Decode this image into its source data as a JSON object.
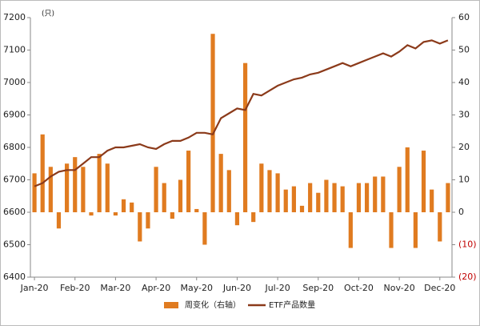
{
  "chart_data": {
    "type": "combo",
    "unit_label": "(只)",
    "categories": [
      "Jan-20",
      null,
      null,
      null,
      null,
      "Feb-20",
      null,
      null,
      null,
      null,
      "Mar-20",
      null,
      null,
      null,
      null,
      "Apr-20",
      null,
      null,
      null,
      null,
      "May-20",
      null,
      null,
      null,
      null,
      "Jun-20",
      null,
      null,
      null,
      null,
      "Jul-20",
      null,
      null,
      null,
      null,
      "Sep-20",
      null,
      null,
      null,
      null,
      "Oct-20",
      null,
      null,
      null,
      null,
      "Nov-20",
      null,
      null,
      null,
      null,
      "Dec-20",
      null
    ],
    "series": [
      {
        "name": "周变化（右轴）",
        "type": "bar",
        "axis": "y2",
        "color": "#e07b20",
        "values": [
          12,
          24,
          14,
          -5,
          15,
          17,
          14,
          -1,
          18,
          15,
          -1,
          4,
          3,
          -9,
          -5,
          14,
          9,
          -2,
          10,
          19,
          1,
          -10,
          55,
          18,
          13,
          -4,
          46,
          -3,
          15,
          13,
          12,
          7,
          8,
          2,
          9,
          6,
          10,
          9,
          8,
          -11,
          9,
          9,
          11,
          11,
          -11,
          14,
          20,
          -11,
          19,
          7,
          -9,
          9
        ]
      },
      {
        "name": "ETF产品数量",
        "type": "line",
        "color": "#8b3a1a",
        "values": [
          6680,
          6690,
          6710,
          6725,
          6730,
          6730,
          6750,
          6770,
          6770,
          6790,
          6800,
          6800,
          6805,
          6810,
          6800,
          6795,
          6810,
          6820,
          6820,
          6830,
          6845,
          6845,
          6840,
          6890,
          6905,
          6920,
          6915,
          6965,
          6960,
          6975,
          6990,
          7000,
          7010,
          7015,
          7025,
          7030,
          7040,
          7050,
          7060,
          7050,
          7060,
          7070,
          7080,
          7090,
          7080,
          7095,
          7115,
          7105,
          7125,
          7130,
          7120,
          7130
        ]
      }
    ],
    "ylim": [
      6400,
      7200
    ],
    "yticks": [
      6400,
      6500,
      6600,
      6700,
      6800,
      6900,
      7000,
      7100,
      7200
    ],
    "y2lim": [
      -20,
      60
    ],
    "y2ticks": [
      {
        "value": -20,
        "label": "(20)"
      },
      {
        "value": -10,
        "label": "(10)"
      },
      0,
      10,
      20,
      30,
      40,
      50,
      60
    ],
    "y2_negative_label_color": "#c00000",
    "legend": "bottom"
  }
}
